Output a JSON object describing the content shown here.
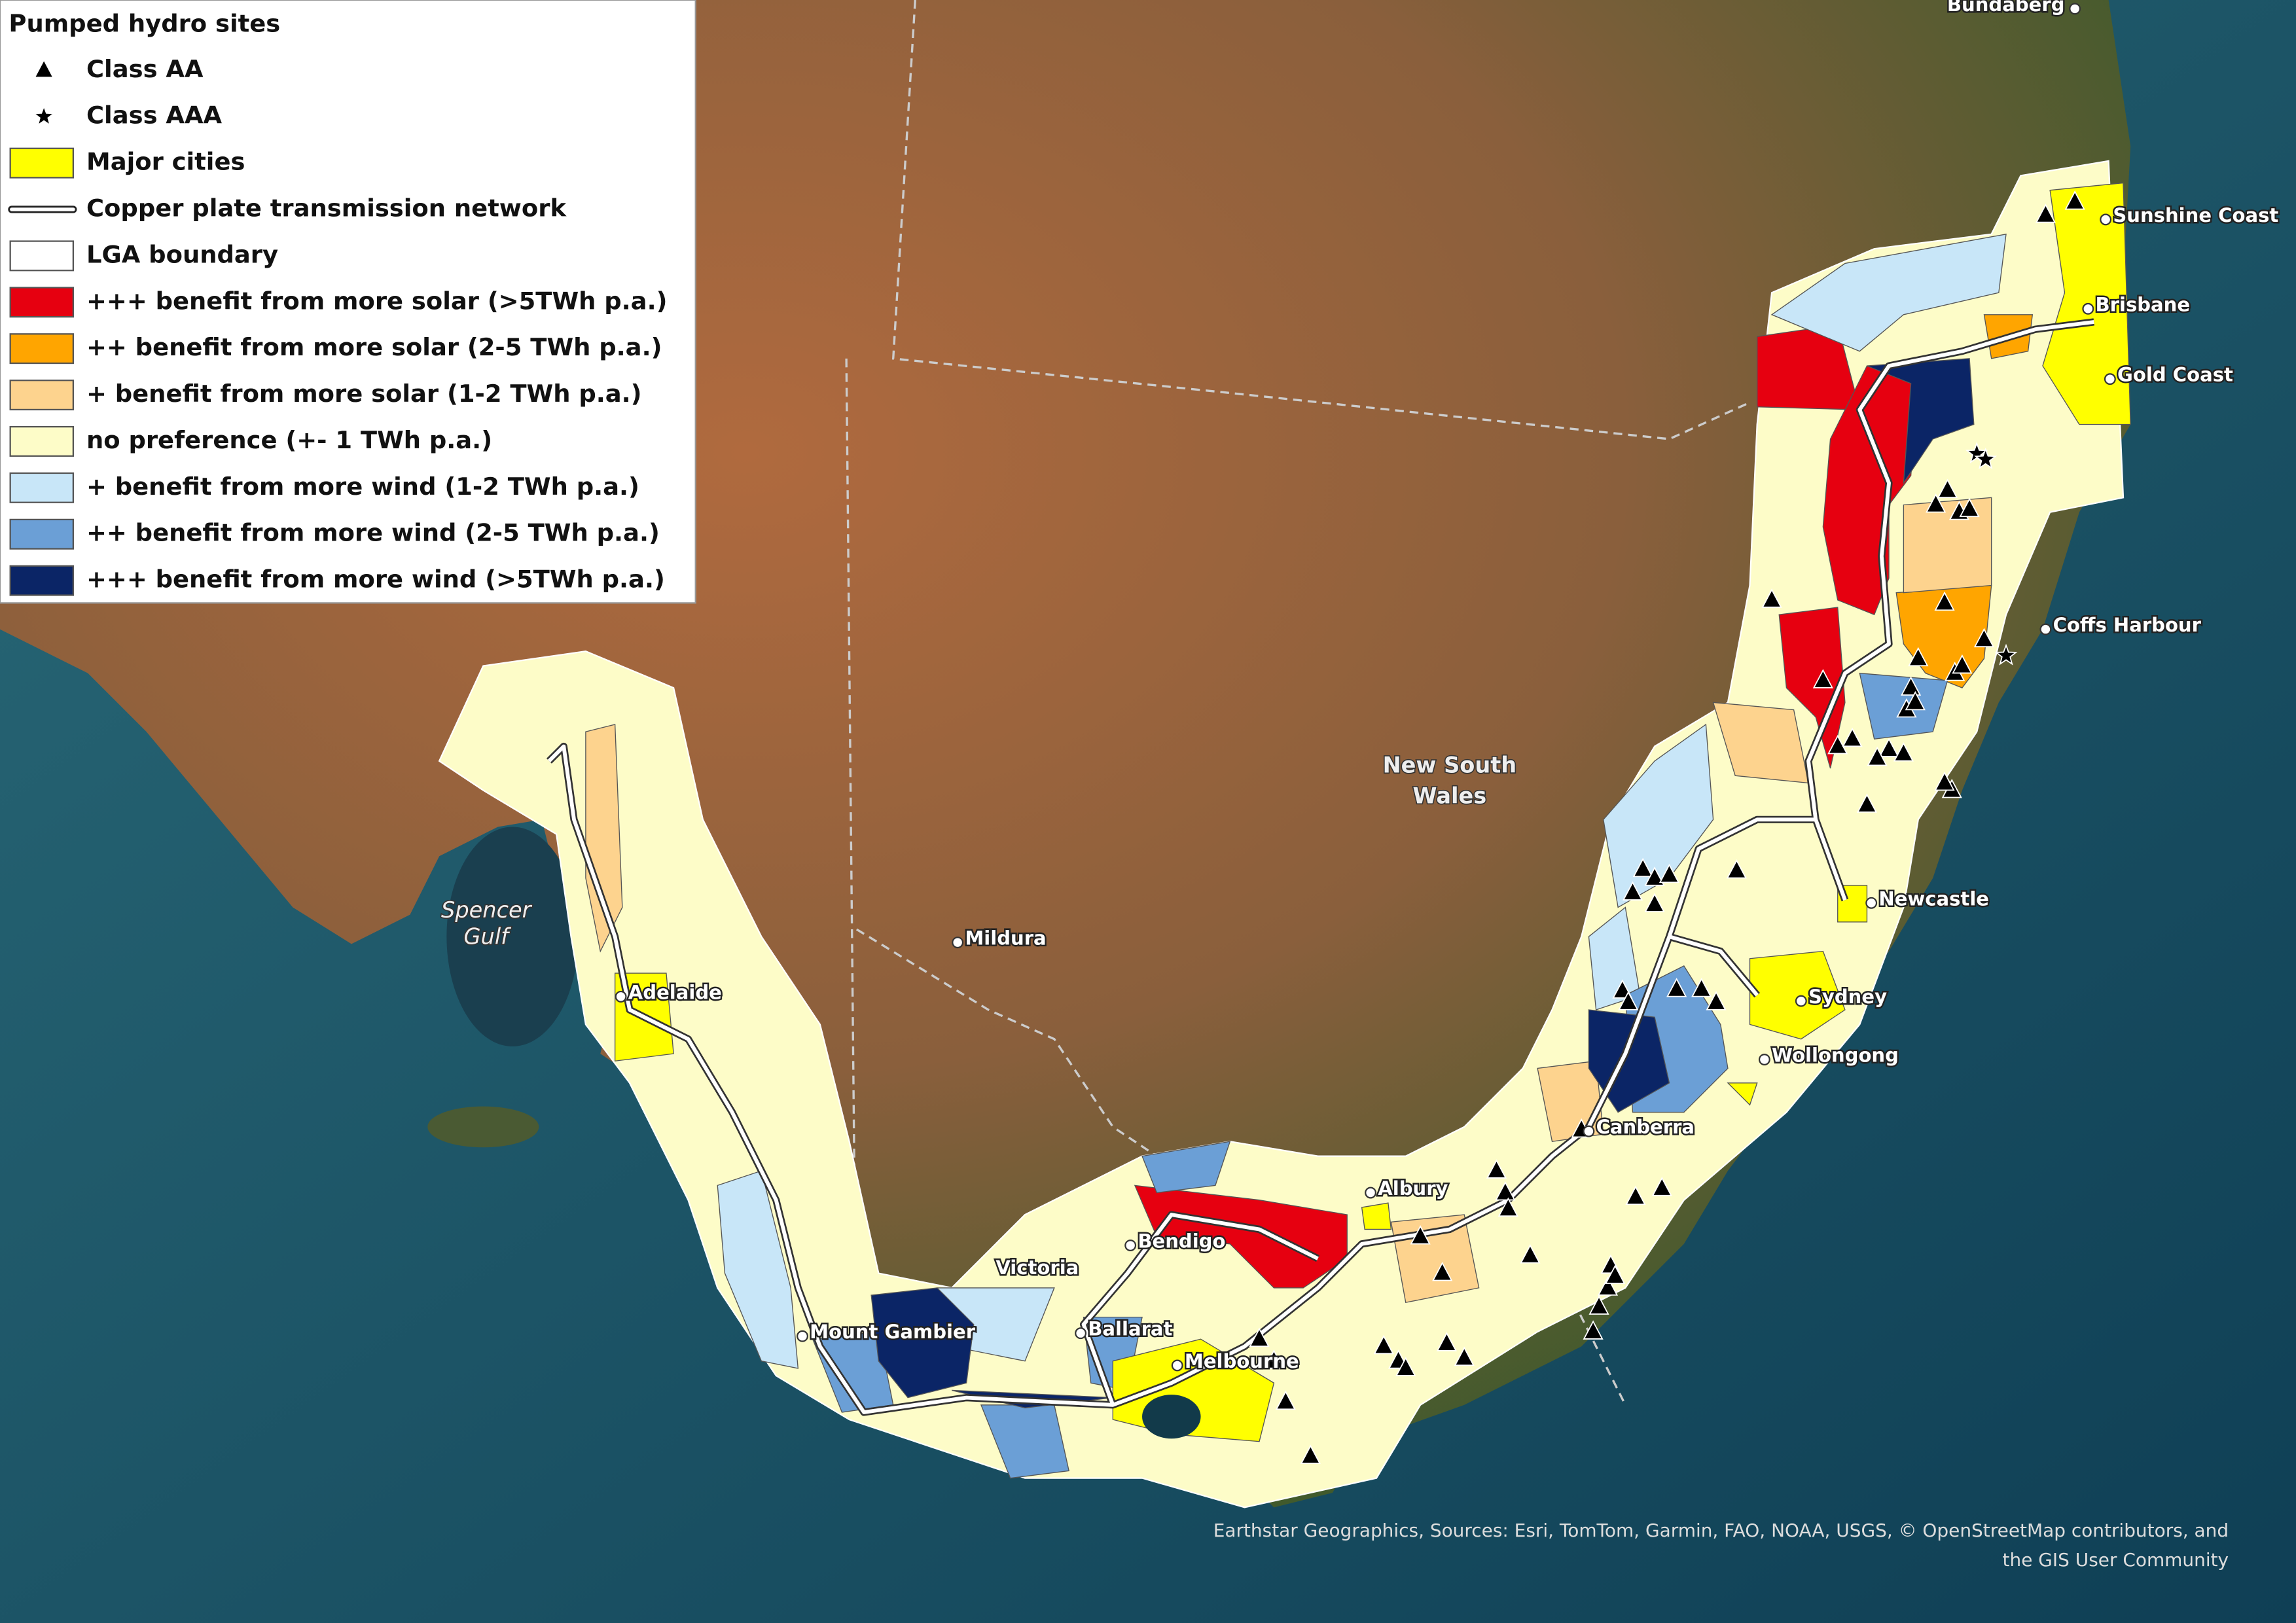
{
  "legend": {
    "title": "Pumped hydro sites",
    "items": [
      {
        "label": "Class AA",
        "symbol": "triangle",
        "color": "#000000"
      },
      {
        "label": "Class AAA",
        "symbol": "star",
        "color": "#000000"
      },
      {
        "label": "Major cities",
        "symbol": "swatch",
        "color": "#ffff00"
      },
      {
        "label": "Copper plate transmission network",
        "symbol": "line",
        "color": "#ffffff"
      },
      {
        "label": "LGA boundary",
        "symbol": "swatch",
        "color": "#ffffff"
      },
      {
        "label": "+++ benefit from more solar (>5TWh p.a.)",
        "symbol": "swatch",
        "color": "#e60010"
      },
      {
        "label": "++ benefit from more solar (2-5 TWh p.a.)",
        "symbol": "swatch",
        "color": "#ffa500"
      },
      {
        "label": "+ benefit from more solar (1-2 TWh p.a.)",
        "symbol": "swatch",
        "color": "#fdd38e"
      },
      {
        "label": "no preference (+- 1 TWh p.a.)",
        "symbol": "swatch",
        "color": "#fdfcc8"
      },
      {
        "label": "+ benefit from more wind (1-2 TWh p.a.)",
        "symbol": "swatch",
        "color": "#c8e6f8"
      },
      {
        "label": "++ benefit from more wind (2-5 TWh p.a.)",
        "symbol": "swatch",
        "color": "#6b9fd6"
      },
      {
        "label": "+++ benefit from more wind (>5TWh p.a.)",
        "symbol": "swatch",
        "color": "#0b2566"
      }
    ]
  },
  "places": [
    "Bundaberg",
    "Sunshine Coast",
    "Brisbane",
    "Gold Coast",
    "Coffs Harbour",
    "Newcastle",
    "Sydney",
    "Wollongong",
    "Canberra",
    "Albury",
    "Bendigo",
    "Ballarat",
    "Mount Gambier",
    "Melbourne",
    "Mildura",
    "Adelaide",
    "Victoria"
  ],
  "regions": {
    "new_south_wales": [
      "New South",
      "Wales"
    ],
    "spencer_gulf": [
      "Spencer",
      "Gulf"
    ]
  },
  "attribution": [
    "Earthstar Geographics, Sources: Esri, TomTom, Garmin, FAO, NOAA, USGS, © OpenStreetMap contributors, and",
    "the GIS User Community"
  ]
}
